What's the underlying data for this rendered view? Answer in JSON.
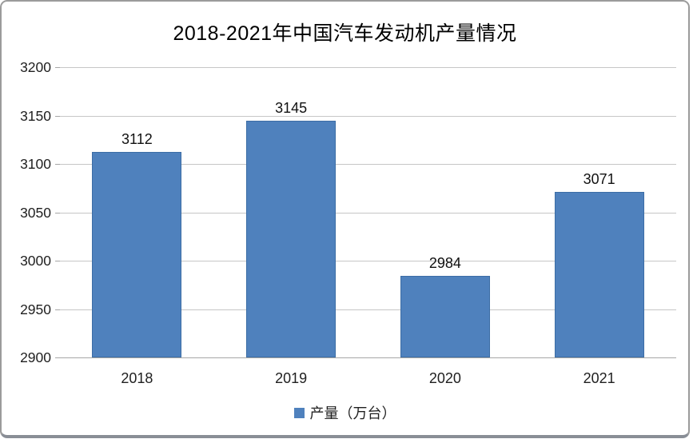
{
  "chart_data": {
    "type": "bar",
    "title": "2018-2021年中国汽车发动机产量情况",
    "categories": [
      "2018",
      "2019",
      "2020",
      "2021"
    ],
    "series": [
      {
        "name": "产量（万台）",
        "values": [
          3112,
          3145,
          2984,
          3071
        ]
      }
    ],
    "xlabel": "",
    "ylabel": "",
    "ylim": [
      2900,
      3200
    ],
    "yticks": [
      2900,
      2950,
      3000,
      3050,
      3100,
      3150,
      3200
    ],
    "grid": true,
    "data_labels_shown": true,
    "legend_position": "bottom",
    "colors": {
      "bar_fill": "#4f81bd",
      "bar_border": "#3c6da5",
      "gridline": "#c6c6c6",
      "axis_line": "#a6a6a6",
      "text": "#1f1f1f",
      "frame_border": "#9b9b9b"
    }
  },
  "legend": {
    "marker": "blue-square",
    "label": "产量（万台）"
  }
}
